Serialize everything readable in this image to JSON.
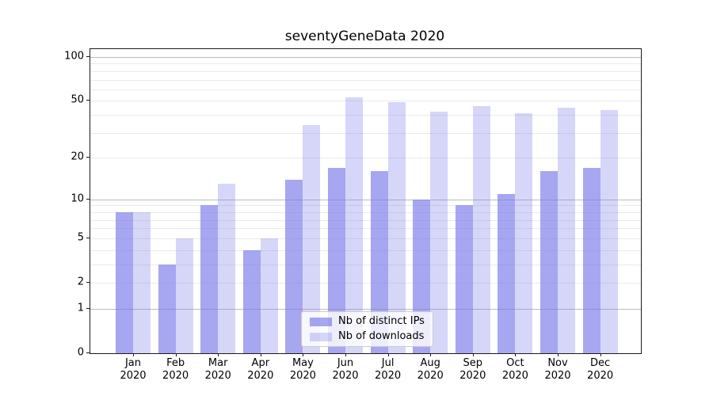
{
  "chart_data": {
    "type": "bar",
    "title": "seventyGeneData 2020",
    "categories": [
      "Jan",
      "Feb",
      "Mar",
      "Apr",
      "May",
      "Jun",
      "Jul",
      "Aug",
      "Sep",
      "Oct",
      "Nov",
      "Dec"
    ],
    "x_tick_second_line": "2020",
    "series": [
      {
        "name": "Nb of distinct IPs",
        "fill": "rgba(118,118,233,0.65)",
        "values": [
          8,
          3,
          9,
          4,
          14,
          17,
          16,
          10,
          9,
          11,
          16,
          17
        ]
      },
      {
        "name": "Nb of downloads",
        "fill": "rgba(118,118,233,0.30)",
        "values": [
          8,
          5,
          13,
          5,
          34,
          53,
          49,
          42,
          46,
          41,
          45,
          43
        ]
      }
    ],
    "y_axis": {
      "scale": "log1p",
      "tick_labels": [
        100,
        50,
        20,
        10,
        5,
        2,
        1,
        0
      ],
      "major_gridlines": [
        1,
        10,
        100
      ],
      "minor_gridlines": [
        2,
        3,
        4,
        5,
        6,
        7,
        8,
        9,
        20,
        30,
        40,
        50,
        60,
        70,
        80,
        90
      ],
      "top_value": 113
    },
    "grid": true,
    "legend_position": "lower-center-inside"
  }
}
